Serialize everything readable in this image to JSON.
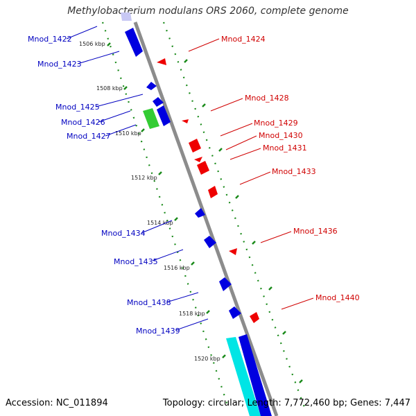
{
  "title": "Methylobacterium nodulans ORS 2060, complete genome",
  "accession": "Accession: NC_011894",
  "topology": "Topology: circular; Length: 7,772,460 bp; Genes: 7,447",
  "colors": {
    "forward": "#0000e0",
    "reverse": "#ee0000",
    "green": "#33cc33",
    "cyan": "#00e5e5",
    "light": "#c8c8f4",
    "axis": "#888888",
    "tick": "#1a8a1a"
  },
  "ticks": [
    "1506 kbp",
    "1508 kbp",
    "1510 kbp",
    "1512 kbp",
    "1514 kbp",
    "1516 kbp",
    "1518 kbp",
    "1520 kbp"
  ],
  "left_labels": [
    "Mnod_1422",
    "Mnod_1423",
    "Mnod_1425",
    "Mnod_1426",
    "Mnod_1427",
    "Mnod_1434",
    "Mnod_1435",
    "Mnod_1438",
    "Mnod_1439"
  ],
  "right_labels": [
    "Mnod_1424",
    "Mnod_1428",
    "Mnod_1429",
    "Mnod_1430",
    "Mnod_1431",
    "Mnod_1433",
    "Mnod_1436",
    "Mnod_1440"
  ]
}
